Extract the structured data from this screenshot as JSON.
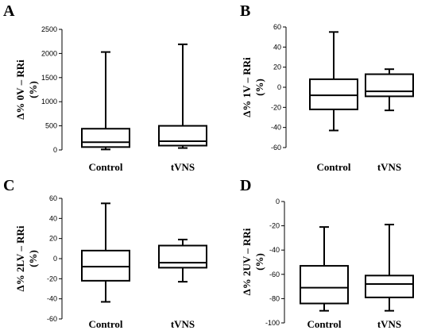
{
  "chart_data": [
    {
      "type": "box",
      "panel": "A",
      "ylabel_line1": "Δ% 0V – RRi",
      "ylabel_line2": "(%)",
      "ylim": [
        0,
        2500
      ],
      "yticks": [
        0,
        500,
        1000,
        1500,
        2000,
        2500
      ],
      "categories": [
        "Control",
        "tVNS"
      ],
      "boxes": [
        {
          "min": 10,
          "q1": 60,
          "median": 160,
          "q3": 440,
          "max": 2030
        },
        {
          "min": 40,
          "q1": 90,
          "median": 180,
          "q3": 500,
          "max": 2190
        }
      ]
    },
    {
      "type": "box",
      "panel": "B",
      "ylabel_line1": "Δ% 1V – RRi",
      "ylabel_line2": "(%)",
      "ylim": [
        -60,
        60
      ],
      "yticks": [
        -60,
        -40,
        -20,
        0,
        20,
        40,
        60
      ],
      "categories": [
        "Control",
        "tVNS"
      ],
      "boxes": [
        {
          "min": -43,
          "q1": -22,
          "median": -8,
          "q3": 8,
          "max": 55
        },
        {
          "min": -23,
          "q1": -9,
          "median": -4,
          "q3": 13,
          "max": 18
        }
      ]
    },
    {
      "type": "box",
      "panel": "C",
      "ylabel_line1": "Δ% 2LV – RRi",
      "ylabel_line2": "(%)",
      "ylim": [
        -60,
        60
      ],
      "yticks": [
        -60,
        -40,
        -20,
        0,
        20,
        40,
        60
      ],
      "categories": [
        "Control",
        "tVNS"
      ],
      "boxes": [
        {
          "min": -43,
          "q1": -22,
          "median": -8,
          "q3": 8,
          "max": 55
        },
        {
          "min": -23,
          "q1": -9,
          "median": -4,
          "q3": 13,
          "max": 19
        }
      ]
    },
    {
      "type": "box",
      "panel": "D",
      "ylabel_line1": "Δ% 2UV – RRi",
      "ylabel_line2": "(%)",
      "ylim": [
        -100,
        0
      ],
      "yticks": [
        -100,
        -80,
        -60,
        -40,
        -20,
        0
      ],
      "categories": [
        "Control",
        "tVNS"
      ],
      "boxes": [
        {
          "min": -90,
          "q1": -84,
          "median": -71,
          "q3": -53,
          "max": -21
        },
        {
          "min": -90,
          "q1": -79,
          "median": -68,
          "q3": -61,
          "max": -19
        }
      ]
    }
  ]
}
